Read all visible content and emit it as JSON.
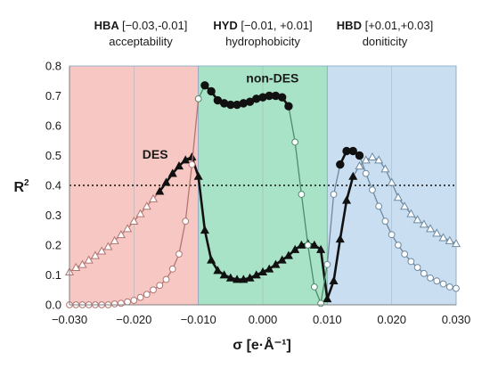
{
  "chart_data": {
    "type": "line",
    "xlabel": "σ [e·Å⁻¹]",
    "ylabel_base": "R",
    "ylabel_sup": "2",
    "xlim": [
      -0.03,
      0.03
    ],
    "ylim": [
      0,
      0.8
    ],
    "xticks": [
      -0.03,
      -0.02,
      -0.01,
      0.0,
      0.01,
      0.02,
      0.03
    ],
    "xtick_labels": [
      "−0.030",
      "−0.020",
      "−0.010",
      "0.000",
      "0.010",
      "0.020",
      "0.030"
    ],
    "yticks": [
      0,
      0.1,
      0.2,
      0.3,
      0.4,
      0.5,
      0.6,
      0.7,
      0.8
    ],
    "ytick_labels": [
      "0.0",
      "0.1",
      "0.2",
      "0.3",
      "0.4",
      "0.5",
      "0.6",
      "0.7",
      "0.8"
    ],
    "threshold": 0.4,
    "regions": [
      {
        "code": "HBA",
        "range": "[−0.03,-0.01]",
        "name": "acceptability",
        "x0": -0.03,
        "x1": -0.01,
        "color": "#f7c7c3"
      },
      {
        "code": "HYD",
        "range": "[−0.01, +0.01]",
        "name": "hydrophobicity",
        "x0": -0.01,
        "x1": 0.01,
        "color": "#a9e3c7"
      },
      {
        "code": "HBD",
        "range": "[+0.01,+0.03]",
        "name": "doniticity",
        "x0": 0.01,
        "x1": 0.03,
        "color": "#c9dff1"
      }
    ],
    "annotations": [
      {
        "text": "DES",
        "x": -0.0167,
        "y": 0.49
      },
      {
        "text": "non-DES",
        "x": 0.0015,
        "y": 0.745
      }
    ],
    "series": [
      {
        "marker": "triangle",
        "x": [
          -0.03,
          -0.029,
          -0.028,
          -0.027,
          -0.026,
          -0.025,
          -0.024,
          -0.023,
          -0.022,
          -0.021,
          -0.02,
          -0.019,
          -0.018,
          -0.017,
          -0.016,
          -0.015,
          -0.014,
          -0.013,
          -0.012,
          -0.011,
          -0.01,
          -0.009,
          -0.008,
          -0.007,
          -0.006,
          -0.005,
          -0.004,
          -0.003,
          -0.002,
          -0.001,
          0.0,
          0.001,
          0.002,
          0.003,
          0.004,
          0.005,
          0.006,
          0.007,
          0.008,
          0.009,
          0.01,
          0.011,
          0.012,
          0.013,
          0.014,
          0.015,
          0.016,
          0.017,
          0.018,
          0.019,
          0.02,
          0.021,
          0.022,
          0.023,
          0.024,
          0.025,
          0.026,
          0.027,
          0.028,
          0.029,
          0.03
        ],
        "y": [
          0.11,
          0.125,
          0.135,
          0.15,
          0.165,
          0.18,
          0.195,
          0.215,
          0.235,
          0.255,
          0.28,
          0.305,
          0.33,
          0.355,
          0.38,
          0.41,
          0.44,
          0.465,
          0.485,
          0.495,
          0.43,
          0.25,
          0.15,
          0.115,
          0.1,
          0.09,
          0.085,
          0.085,
          0.09,
          0.1,
          0.11,
          0.12,
          0.135,
          0.15,
          0.165,
          0.185,
          0.2,
          0.205,
          0.2,
          0.185,
          0.02,
          0.08,
          0.22,
          0.35,
          0.43,
          0.465,
          0.485,
          0.495,
          0.485,
          0.455,
          0.41,
          0.36,
          0.33,
          0.305,
          0.285,
          0.27,
          0.255,
          0.24,
          0.225,
          0.215,
          0.205
        ],
        "highlight_x": [
          -0.0165,
          0.0145
        ]
      },
      {
        "marker": "circle",
        "x": [
          -0.03,
          -0.029,
          -0.028,
          -0.027,
          -0.026,
          -0.025,
          -0.024,
          -0.023,
          -0.022,
          -0.021,
          -0.02,
          -0.019,
          -0.018,
          -0.017,
          -0.016,
          -0.015,
          -0.014,
          -0.013,
          -0.012,
          -0.011,
          -0.01,
          -0.009,
          -0.008,
          -0.007,
          -0.006,
          -0.005,
          -0.004,
          -0.003,
          -0.002,
          -0.001,
          0.0,
          0.001,
          0.002,
          0.003,
          0.004,
          0.005,
          0.006,
          0.007,
          0.008,
          0.009,
          0.01,
          0.011,
          0.012,
          0.013,
          0.014,
          0.015,
          0.016,
          0.017,
          0.018,
          0.019,
          0.02,
          0.021,
          0.022,
          0.023,
          0.024,
          0.025,
          0.026,
          0.027,
          0.028,
          0.029,
          0.03
        ],
        "y": [
          0.0,
          0.0,
          0.0,
          0.0,
          0.0,
          0.0,
          0.0,
          0.003,
          0.005,
          0.01,
          0.015,
          0.025,
          0.035,
          0.05,
          0.065,
          0.085,
          0.12,
          0.17,
          0.28,
          0.47,
          0.69,
          0.735,
          0.715,
          0.685,
          0.675,
          0.67,
          0.67,
          0.675,
          0.68,
          0.69,
          0.695,
          0.7,
          0.7,
          0.695,
          0.665,
          0.545,
          0.37,
          0.2,
          0.06,
          0.005,
          0.135,
          0.37,
          0.47,
          0.515,
          0.515,
          0.5,
          0.44,
          0.385,
          0.33,
          0.28,
          0.235,
          0.2,
          0.17,
          0.145,
          0.125,
          0.105,
          0.09,
          0.08,
          0.07,
          0.06,
          0.055
        ],
        "highlight_x": [
          -0.0095,
          0.0045,
          0.0115,
          0.0155
        ]
      }
    ]
  }
}
